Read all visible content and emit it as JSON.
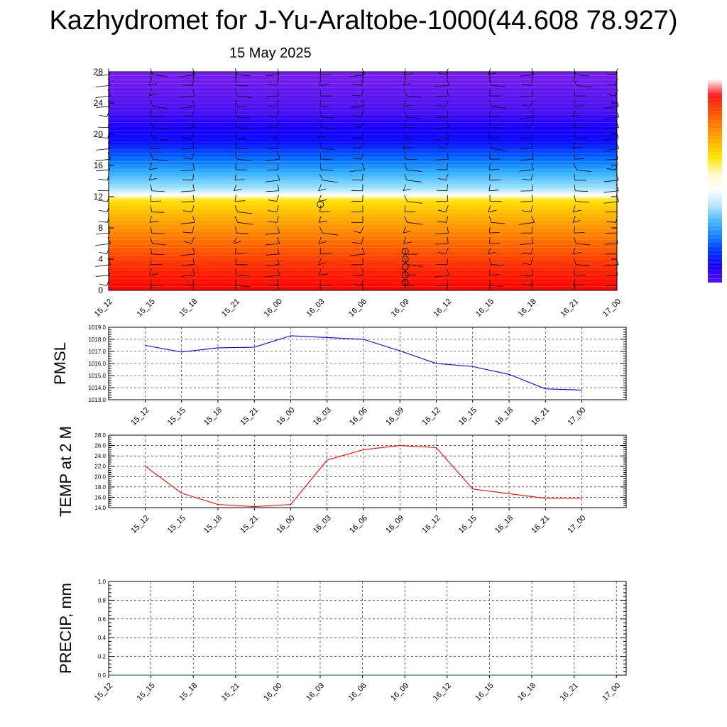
{
  "title": "Kazhydromet for J-Yu-Araltobe-1000(44.608 78.927)",
  "date": "15 May 2025",
  "chart_data": [
    {
      "type": "heatmap",
      "name": "temperature-wind-height-section",
      "x_tick_labels": [
        "15_12",
        "15_15",
        "15_18",
        "15_21",
        "16_00",
        "16_03",
        "16_06",
        "16_09",
        "16_12",
        "16_15",
        "16_18",
        "16_21",
        "17_00"
      ],
      "y_tick_labels": [
        "0",
        "4",
        "8",
        "12",
        "16",
        "20",
        "24",
        "28"
      ],
      "ylim": [
        0,
        28
      ],
      "colors": {
        "bands_bottom_to_top": [
          "#ff0000",
          "#ff2a00",
          "#ff6a00",
          "#ffa800",
          "#ffe100",
          "#ffffff",
          "#a8e6ff",
          "#33b2ff",
          "#0066ff",
          "#0a0aff",
          "#1a00ff",
          "#4a0ff2",
          "#7b1fed"
        ],
        "band_stops_height": [
          0,
          3,
          6,
          9,
          11.5,
          12.2,
          13,
          15,
          17,
          19,
          21,
          23,
          28
        ]
      },
      "wind_barbs": true,
      "calm_circles_at": [
        {
          "x": "16_03",
          "y": 11
        },
        {
          "x": "16_09",
          "y": 1
        },
        {
          "x": "16_09",
          "y": 2
        },
        {
          "x": "16_09",
          "y": 3
        },
        {
          "x": "16_09",
          "y": 4
        },
        {
          "x": "16_09",
          "y": 5
        }
      ]
    },
    {
      "type": "line",
      "name": "pmsl",
      "ylabel": "PMSL",
      "x": [
        "15_12",
        "15_15",
        "15_18",
        "15_21",
        "16_00",
        "16_03",
        "16_06",
        "16_09",
        "16_12",
        "16_15",
        "16_18",
        "16_21",
        "17_00"
      ],
      "values": [
        1017.5,
        1016.95,
        1017.3,
        1017.35,
        1018.3,
        1018.15,
        1018.0,
        1017.05,
        1016.0,
        1015.75,
        1015.1,
        1013.9,
        1013.8
      ],
      "ylim": [
        1013.0,
        1019.0
      ],
      "y_tick_labels": [
        "1013.0",
        "1014.0",
        "1015.0",
        "1016.0",
        "1017.0",
        "1018.0",
        "1019.0"
      ],
      "color": "#0000ff",
      "grid": true
    },
    {
      "type": "line",
      "name": "temp-2m",
      "ylabel": "TEMP at 2 M",
      "x": [
        "15_12",
        "15_15",
        "15_18",
        "15_21",
        "16_00",
        "16_03",
        "16_06",
        "16_09",
        "16_12",
        "16_15",
        "16_18",
        "16_21",
        "17_00"
      ],
      "values": [
        22.0,
        16.8,
        14.6,
        14.2,
        14.6,
        23.2,
        25.2,
        26.0,
        25.6,
        17.6,
        16.7,
        15.8,
        15.8
      ],
      "ylim": [
        14.0,
        28.0
      ],
      "y_tick_labels": [
        "14.0",
        "16.0",
        "18.0",
        "20.0",
        "22.0",
        "24.0",
        "26.0",
        "28.0"
      ],
      "color": "#ff0000",
      "grid": true
    },
    {
      "type": "line",
      "name": "precip",
      "ylabel": "PRECIP, mm",
      "x": [
        "15_12",
        "15_15",
        "15_18",
        "15_21",
        "16_00",
        "16_03",
        "16_06",
        "16_09",
        "16_12",
        "16_15",
        "16_18",
        "16_21",
        "17_00"
      ],
      "values": [
        0,
        0,
        0,
        0,
        0,
        0,
        0,
        0,
        0,
        0,
        0,
        0,
        0
      ],
      "ylim": [
        0.0,
        1.0
      ],
      "y_tick_labels": [
        "0.0",
        "0.2",
        "0.4",
        "0.6",
        "0.8",
        "1.0"
      ],
      "color": "#006400",
      "grid": true
    }
  ],
  "colorbar": {
    "colors_top_to_bottom": [
      "#f8f8f8",
      "#ff1a1a",
      "#ff4d00",
      "#ff8000",
      "#ffb300",
      "#ffe600",
      "#fff9c0",
      "#ffffff",
      "#bfe6ff",
      "#4dbbff",
      "#1a80ff",
      "#0033ff",
      "#1a00ff",
      "#5c12f0"
    ]
  }
}
